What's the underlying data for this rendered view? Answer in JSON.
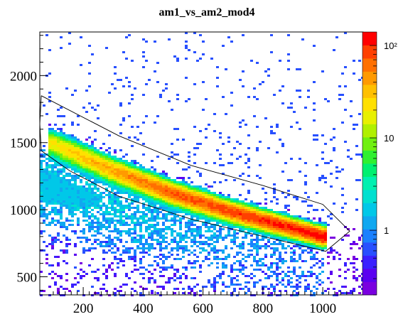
{
  "chart_data": {
    "type": "heatmap",
    "title": "am1_vs_am2_mod4",
    "xlabel": "",
    "ylabel": "",
    "xlim": [
      55,
      1135
    ],
    "ylim": [
      365,
      2325
    ],
    "x_ticks": [
      200,
      400,
      600,
      800,
      1000
    ],
    "y_ticks": [
      500,
      1000,
      1500,
      2000
    ],
    "z_scale": "log",
    "z_range": [
      0.2,
      140
    ],
    "z_ticks": [
      {
        "value": 1,
        "label": "1"
      },
      {
        "value": 10,
        "label": "10"
      },
      {
        "value": 100,
        "label": "10²"
      }
    ],
    "palette": [
      "#7a00e0",
      "#5a00f0",
      "#3a20ff",
      "#2850ff",
      "#1a80ff",
      "#10a8f0",
      "#00c8e8",
      "#00e0d0",
      "#00f0b0",
      "#00f070",
      "#30f030",
      "#70f010",
      "#b0f000",
      "#e8f000",
      "#ffe000",
      "#ffc000",
      "#ff9a00",
      "#ff7000",
      "#ff4000",
      "#ff0000"
    ],
    "main_band": {
      "description_points": [
        [
          100,
          1490
        ],
        [
          300,
          1290
        ],
        [
          500,
          1120
        ],
        [
          700,
          980
        ],
        [
          900,
          860
        ],
        [
          1000,
          800
        ]
      ],
      "peak_counts": [
        20,
        40,
        70,
        90,
        110,
        140
      ]
    },
    "cut_polygon": [
      [
        60,
        1850
      ],
      [
        320,
        1550
      ],
      [
        560,
        1330
      ],
      [
        800,
        1180
      ],
      [
        1000,
        1040
      ],
      [
        1090,
        840
      ],
      [
        1010,
        690
      ],
      [
        840,
        780
      ],
      [
        560,
        930
      ],
      [
        320,
        1100
      ],
      [
        155,
        1290
      ],
      [
        60,
        1440
      ],
      [
        55,
        1640
      ]
    ],
    "grid": false,
    "legend": "none"
  }
}
